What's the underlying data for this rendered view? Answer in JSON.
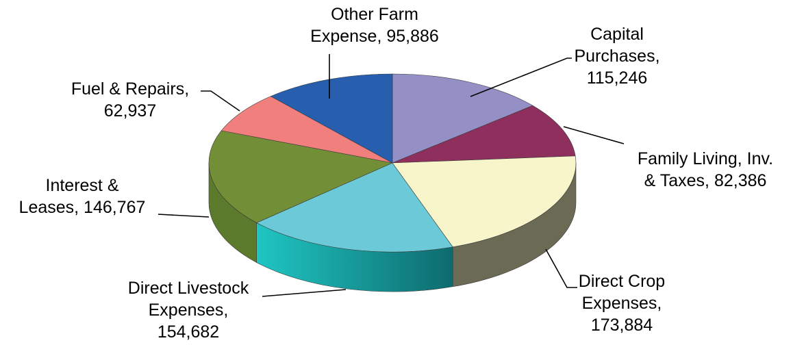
{
  "chart_data": {
    "type": "pie",
    "style": "3d",
    "title": "",
    "slices": [
      {
        "label_lines": [
          "Capital",
          "Purchases,",
          "115,246"
        ],
        "name": "Capital Purchases",
        "value": 115246,
        "color": "#9490C6"
      },
      {
        "label_lines": [
          "Family Living, Inv.",
          "& Taxes, 82,386"
        ],
        "name": "Family Living, Inv. & Taxes",
        "value": 82386,
        "color": "#8E2F5D"
      },
      {
        "label_lines": [
          "Direct Crop",
          "Expenses,",
          "173,884"
        ],
        "name": "Direct Crop Expenses",
        "value": 173884,
        "color": "#F7F5C9"
      },
      {
        "label_lines": [
          "Direct Livestock",
          "Expenses,",
          "154,682"
        ],
        "name": "Direct Livestock Expenses",
        "value": 154682,
        "color": "#6CCAD8"
      },
      {
        "label_lines": [
          "Interest &",
          "Leases, 146,767"
        ],
        "name": "Interest & Leases",
        "value": 146767,
        "color": "#728F38"
      },
      {
        "label_lines": [
          "Fuel & Repairs,",
          "62,937"
        ],
        "name": "Fuel & Repairs",
        "value": 62937,
        "color": "#F07F7D"
      },
      {
        "label_lines": [
          "Other Farm",
          "Expense, 95,886"
        ],
        "name": "Other Farm Expense",
        "value": 95886,
        "color": "#275EAD"
      }
    ],
    "legend": "none",
    "grid": false
  }
}
